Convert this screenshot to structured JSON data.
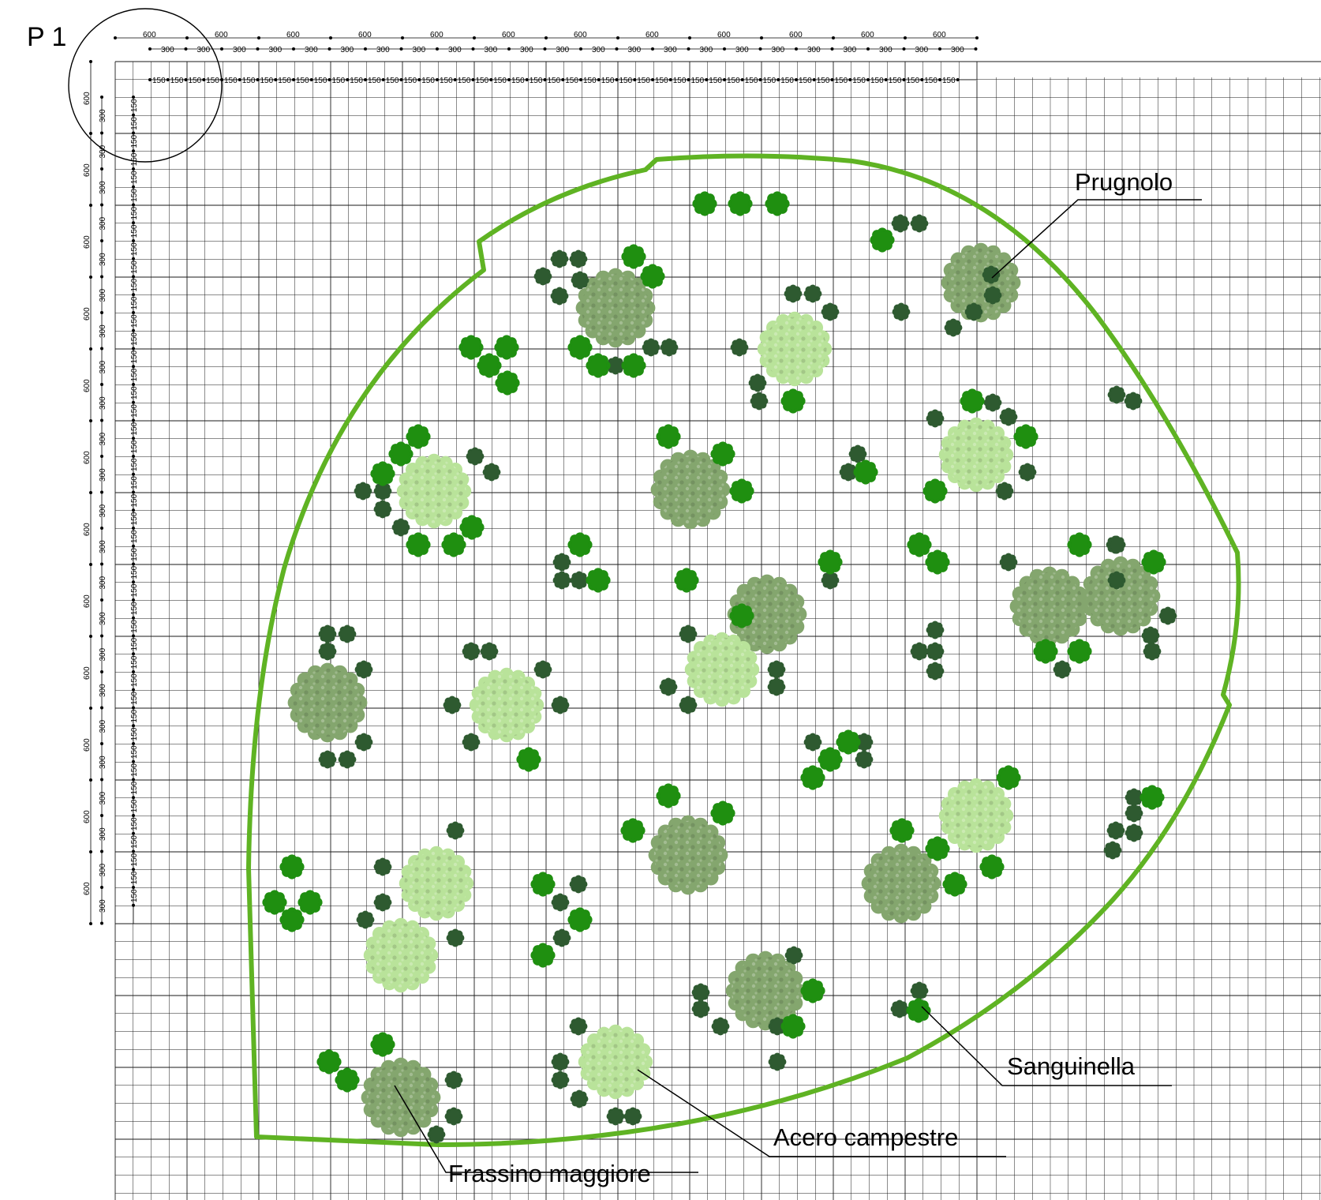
{
  "sheet": {
    "title": "P 1"
  },
  "dimensions": {
    "label_600": "600",
    "label_300": "300",
    "label_150": "150"
  },
  "legend": {
    "prugnolo": "Prugnolo",
    "sanguinella": "Sanguinella",
    "acero": "Acero campestre",
    "frassino": "Frassino maggiore"
  },
  "colors": {
    "boundary": "#5fb323",
    "grid": "#1a1a1a",
    "prugnolo": "#2e5a30",
    "sanguinella": "#1f8f10",
    "acero": "#b9e39a",
    "frassino": "#84a66e"
  }
}
